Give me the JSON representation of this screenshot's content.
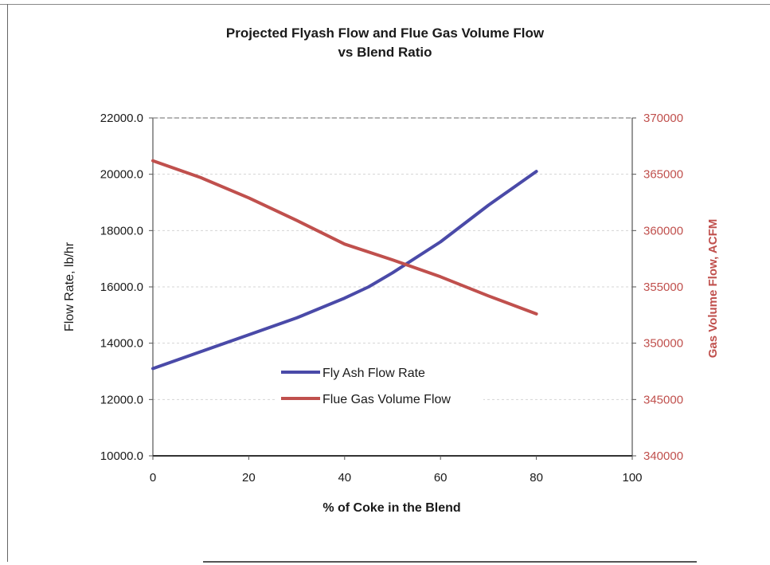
{
  "chart_data": {
    "type": "line",
    "title_lines": [
      "Projected Flyash Flow and Flue Gas Volume Flow",
      "vs Blend Ratio"
    ],
    "xlabel": "% of Coke in the Blend",
    "ylabel_left": "Flow Rate, lb/hr",
    "ylabel_right": "Gas Volume Flow, ACFM",
    "xlim": [
      0,
      100
    ],
    "ylim_left": [
      10000,
      22000
    ],
    "ylim_right": [
      340000,
      370000
    ],
    "x_ticks": [
      "0",
      "20",
      "40",
      "60",
      "80",
      "100"
    ],
    "y_left_ticks": [
      "10000.0",
      "12000.0",
      "14000.0",
      "16000.0",
      "18000.0",
      "20000.0",
      "22000.0"
    ],
    "y_right_ticks": [
      "340000",
      "345000",
      "350000",
      "355000",
      "360000",
      "365000",
      "370000"
    ],
    "legend_position": "lower-center",
    "series": [
      {
        "name": "Fly Ash Flow Rate",
        "axis": "left",
        "color": "#4a4aa8",
        "x": [
          0,
          10,
          20,
          30,
          40,
          45,
          50,
          60,
          70,
          80
        ],
        "y": [
          13100,
          13700,
          14300,
          14900,
          15600,
          16000,
          16500,
          17600,
          18900,
          20100
        ]
      },
      {
        "name": "Flue Gas Volume Flow",
        "axis": "right",
        "color": "#c0504d",
        "x": [
          0,
          10,
          20,
          30,
          40,
          50,
          60,
          70,
          80
        ],
        "y": [
          366200,
          364700,
          362900,
          360900,
          358800,
          357400,
          355900,
          354200,
          352600
        ]
      }
    ]
  }
}
